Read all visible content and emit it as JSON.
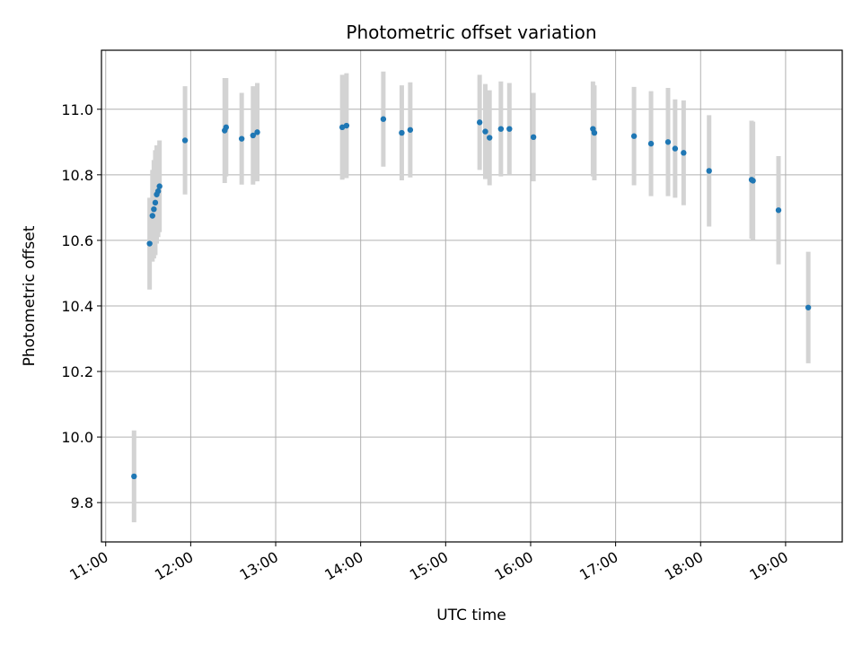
{
  "chart_data": {
    "type": "scatter",
    "title": "Photometric offset variation",
    "xlabel": "UTC time",
    "ylabel": "Photometric offset",
    "x_ticks": [
      "11:00",
      "12:00",
      "13:00",
      "14:00",
      "15:00",
      "16:00",
      "17:00",
      "18:00",
      "19:00"
    ],
    "y_ticks": [
      "9.8",
      "10.0",
      "10.2",
      "10.4",
      "10.6",
      "10.8",
      "11.0"
    ],
    "xlim": [
      "10:57",
      "19:40"
    ],
    "ylim": [
      9.68,
      11.18
    ],
    "grid": true,
    "marker_color": "#1f77b4",
    "errorbar_color": "#d3d3d3",
    "series": [
      {
        "points": [
          {
            "x": "11:20",
            "y": 9.88,
            "err": 0.14
          },
          {
            "x": "11:31",
            "y": 10.59,
            "err": 0.14
          },
          {
            "x": "11:33",
            "y": 10.675,
            "err": 0.14
          },
          {
            "x": "11:34",
            "y": 10.695,
            "err": 0.15
          },
          {
            "x": "11:35",
            "y": 10.715,
            "err": 0.16
          },
          {
            "x": "11:36",
            "y": 10.74,
            "err": 0.15
          },
          {
            "x": "11:37",
            "y": 10.75,
            "err": 0.14
          },
          {
            "x": "11:38",
            "y": 10.765,
            "err": 0.14
          },
          {
            "x": "11:56",
            "y": 10.905,
            "err": 0.165
          },
          {
            "x": "12:24",
            "y": 10.935,
            "err": 0.16
          },
          {
            "x": "12:25",
            "y": 10.945,
            "err": 0.15
          },
          {
            "x": "12:36",
            "y": 10.91,
            "err": 0.14
          },
          {
            "x": "12:44",
            "y": 10.92,
            "err": 0.15
          },
          {
            "x": "12:47",
            "y": 10.93,
            "err": 0.15
          },
          {
            "x": "13:47",
            "y": 10.945,
            "err": 0.16
          },
          {
            "x": "13:50",
            "y": 10.95,
            "err": 0.16
          },
          {
            "x": "14:16",
            "y": 10.97,
            "err": 0.145
          },
          {
            "x": "14:29",
            "y": 10.928,
            "err": 0.145
          },
          {
            "x": "14:35",
            "y": 10.937,
            "err": 0.145
          },
          {
            "x": "15:24",
            "y": 10.96,
            "err": 0.145
          },
          {
            "x": "15:28",
            "y": 10.932,
            "err": 0.145
          },
          {
            "x": "15:31",
            "y": 10.913,
            "err": 0.145
          },
          {
            "x": "15:39",
            "y": 10.94,
            "err": 0.145
          },
          {
            "x": "15:45",
            "y": 10.94,
            "err": 0.14
          },
          {
            "x": "16:02",
            "y": 10.915,
            "err": 0.135
          },
          {
            "x": "16:44",
            "y": 10.94,
            "err": 0.145
          },
          {
            "x": "16:45",
            "y": 10.928,
            "err": 0.145
          },
          {
            "x": "17:13",
            "y": 10.918,
            "err": 0.15
          },
          {
            "x": "17:25",
            "y": 10.895,
            "err": 0.16
          },
          {
            "x": "17:37",
            "y": 10.9,
            "err": 0.165
          },
          {
            "x": "17:42",
            "y": 10.88,
            "err": 0.15
          },
          {
            "x": "17:48",
            "y": 10.867,
            "err": 0.16
          },
          {
            "x": "18:06",
            "y": 10.812,
            "err": 0.17
          },
          {
            "x": "18:36",
            "y": 10.785,
            "err": 0.18
          },
          {
            "x": "18:37",
            "y": 10.782,
            "err": 0.18
          },
          {
            "x": "18:55",
            "y": 10.692,
            "err": 0.165
          },
          {
            "x": "19:16",
            "y": 10.395,
            "err": 0.17
          }
        ]
      }
    ]
  }
}
